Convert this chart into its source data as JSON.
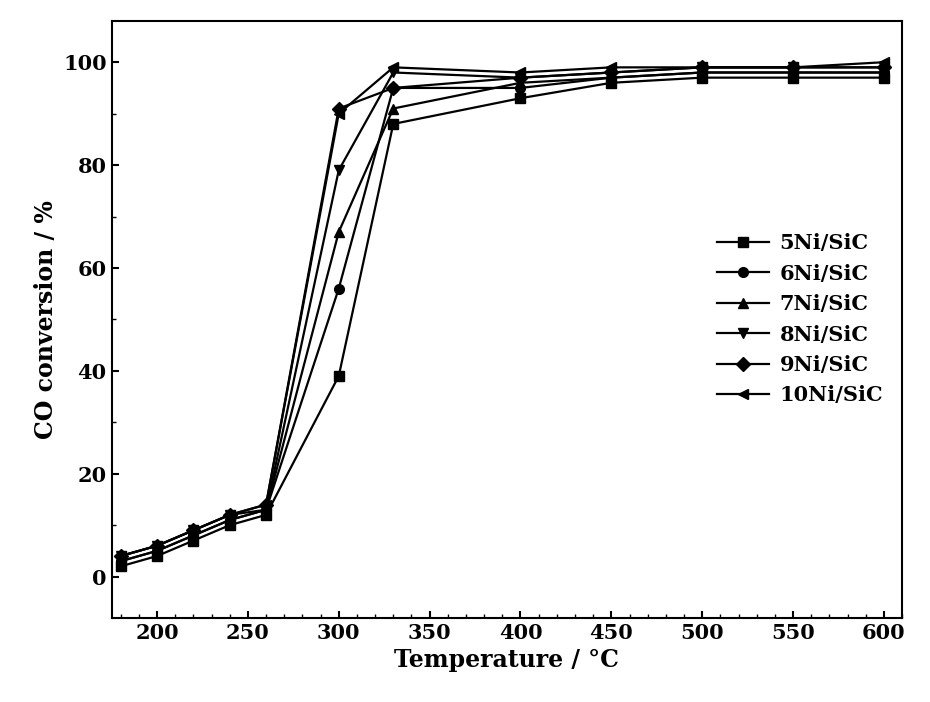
{
  "title": "",
  "xlabel": "Temperature / °C",
  "ylabel": "CO conversion / %",
  "xlim": [
    175,
    610
  ],
  "ylim": [
    -8,
    108
  ],
  "xticks": [
    200,
    250,
    300,
    350,
    400,
    450,
    500,
    550,
    600
  ],
  "yticks": [
    0,
    20,
    40,
    60,
    80,
    100
  ],
  "background_color": "#ffffff",
  "series": [
    {
      "label": "5Ni/SiC",
      "marker": "s",
      "linestyle": "-",
      "color": "#000000",
      "x": [
        180,
        200,
        220,
        240,
        260,
        300,
        330,
        400,
        450,
        500,
        550,
        600
      ],
      "y": [
        2,
        4,
        7,
        10,
        12,
        39,
        88,
        93,
        96,
        97,
        97,
        97
      ]
    },
    {
      "label": "6Ni/SiC",
      "marker": "o",
      "linestyle": "-",
      "color": "#000000",
      "x": [
        180,
        200,
        220,
        240,
        260,
        300,
        330,
        400,
        450,
        500,
        550,
        600
      ],
      "y": [
        3,
        5,
        8,
        11,
        13,
        56,
        95,
        95,
        97,
        98,
        98,
        98
      ]
    },
    {
      "label": "7Ni/SiC",
      "marker": "^",
      "linestyle": "-",
      "color": "#000000",
      "x": [
        180,
        200,
        220,
        240,
        260,
        300,
        330,
        400,
        450,
        500,
        550,
        600
      ],
      "y": [
        3,
        5,
        8,
        11,
        13,
        67,
        91,
        96,
        97,
        98,
        98,
        98
      ]
    },
    {
      "label": "8Ni/SiC",
      "marker": "v",
      "linestyle": "-",
      "color": "#000000",
      "x": [
        180,
        200,
        220,
        240,
        260,
        300,
        330,
        400,
        450,
        500,
        550,
        600
      ],
      "y": [
        4,
        6,
        9,
        12,
        13,
        79,
        98,
        97,
        98,
        99,
        99,
        99
      ]
    },
    {
      "label": "9Ni/SiC",
      "marker": "D",
      "linestyle": "-",
      "color": "#000000",
      "x": [
        180,
        200,
        220,
        240,
        260,
        300,
        330,
        400,
        450,
        500,
        550,
        600
      ],
      "y": [
        4,
        6,
        9,
        12,
        14,
        91,
        95,
        97,
        98,
        99,
        99,
        99
      ]
    },
    {
      "label": "10Ni/SiC",
      "marker": "<",
      "linestyle": "-",
      "color": "#000000",
      "x": [
        180,
        200,
        220,
        240,
        260,
        300,
        330,
        400,
        450,
        500,
        550,
        600
      ],
      "y": [
        4,
        6,
        9,
        12,
        14,
        90,
        99,
        98,
        99,
        99,
        99,
        100
      ]
    }
  ],
  "legend_loc": "center right",
  "fontsize_axis_label": 17,
  "fontsize_tick": 15,
  "fontsize_legend": 15,
  "linewidth": 1.6,
  "markersize": 7
}
